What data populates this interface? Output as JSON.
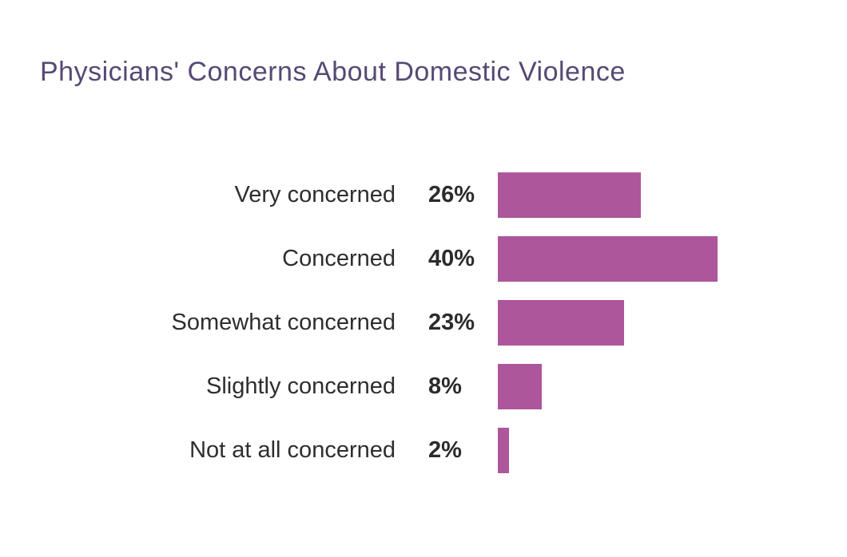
{
  "header": {
    "title": "Physicians' Concerns About Domestic Violence",
    "title_color": "#564a73"
  },
  "chart_data": {
    "type": "bar",
    "orientation": "horizontal",
    "title": "Physicians' Concerns About Domestic Violence",
    "categories": [
      "Very concerned",
      "Concerned",
      "Somewhat concerned",
      "Slightly concerned",
      "Not at all concerned"
    ],
    "values": [
      26,
      40,
      23,
      8,
      2
    ],
    "value_labels": [
      "26%",
      "40%",
      "23%",
      "8%",
      "2%"
    ],
    "xlabel": "",
    "ylabel": "",
    "xlim": [
      0,
      40
    ],
    "grid": false,
    "legend": false,
    "bar_color": "#ad569c",
    "label_color": "#2e2e2e",
    "background_color": "#ffffff"
  }
}
